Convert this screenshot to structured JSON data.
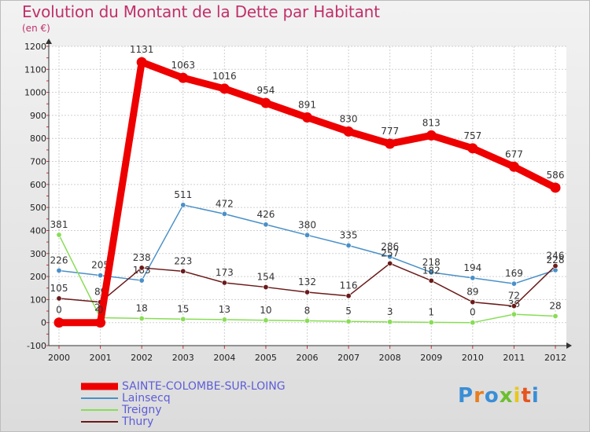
{
  "title": "Evolution du Montant de la Dette par Habitant",
  "subtitle": "(en €)",
  "logo": "Proxiti",
  "chart_data": {
    "type": "line",
    "categories": [
      "2000",
      "2001",
      "2002",
      "2003",
      "2004",
      "2005",
      "2006",
      "2007",
      "2008",
      "2009",
      "2010",
      "2011",
      "2012"
    ],
    "ylim": [
      -100,
      1200
    ],
    "yticks": [
      -100,
      0,
      100,
      200,
      300,
      400,
      500,
      600,
      700,
      800,
      900,
      1000,
      1100,
      1200
    ],
    "grid": true,
    "legend_position": "bottom-left",
    "series": [
      {
        "name": "SAINTE-COLOMBE-SUR-LOING",
        "color": "#ee0000",
        "values": [
          0,
          0,
          1131,
          1063,
          1016,
          954,
          891,
          830,
          777,
          813,
          757,
          677,
          586
        ]
      },
      {
        "name": "Lainsecq",
        "color": "#4a90c8",
        "values": [
          226,
          205,
          183,
          511,
          472,
          426,
          380,
          335,
          286,
          218,
          194,
          169,
          228
        ]
      },
      {
        "name": "Treigny",
        "color": "#88dd55",
        "values": [
          381,
          21,
          18,
          15,
          13,
          10,
          8,
          5,
          3,
          1,
          0,
          36,
          28
        ]
      },
      {
        "name": "Thury",
        "color": "#6b1a1a",
        "values": [
          105,
          89,
          238,
          223,
          173,
          154,
          132,
          116,
          257,
          182,
          89,
          72,
          246
        ]
      }
    ]
  }
}
